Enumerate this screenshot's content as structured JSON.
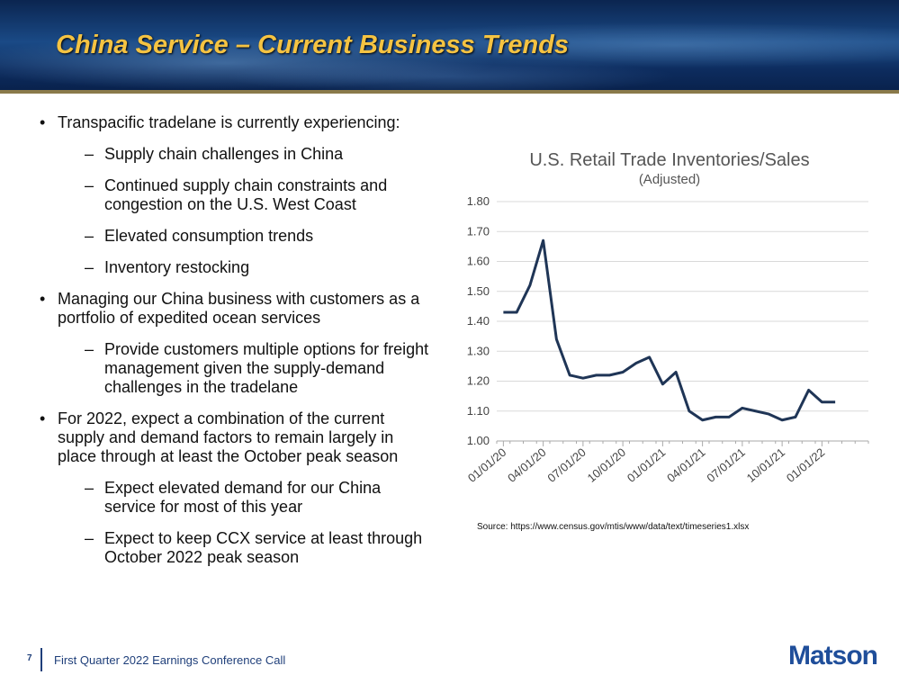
{
  "header": {
    "title": "China Service – Current Business Trends"
  },
  "bullets": [
    {
      "level": 1,
      "text": "Transpacific tradelane is currently experiencing:"
    },
    {
      "level": 2,
      "text": "Supply chain challenges in China"
    },
    {
      "level": 2,
      "text": "Continued supply chain constraints and congestion on the U.S. West Coast"
    },
    {
      "level": 2,
      "text": "Elevated consumption trends"
    },
    {
      "level": 2,
      "text": "Inventory restocking"
    },
    {
      "level": 1,
      "text": "Managing our China business with customers as a portfolio of expedited ocean services"
    },
    {
      "level": 2,
      "text": "Provide customers multiple options for freight management given the supply-demand challenges in the tradelane"
    },
    {
      "level": 1,
      "text": "For 2022, expect a combination of the current supply and demand factors to remain largely in place through at least the October peak season"
    },
    {
      "level": 2,
      "text": "Expect elevated demand for our China service for most of this year"
    },
    {
      "level": 2,
      "text": "Expect to keep CCX service at least through October 2022 peak season"
    }
  ],
  "chart_data": {
    "type": "line",
    "title": "U.S. Retail Trade Inventories/Sales",
    "subtitle": "(Adjusted)",
    "source": "Source: https://www.census.gov/mtis/www/data/text/timeseries1.xlsx",
    "categories": [
      "01/01/20",
      null,
      null,
      "04/01/20",
      null,
      null,
      "07/01/20",
      null,
      null,
      "10/01/20",
      null,
      null,
      "01/01/21",
      null,
      null,
      "04/01/21",
      null,
      null,
      "07/01/21",
      null,
      null,
      "10/01/21",
      null,
      null,
      "01/01/22",
      null,
      null,
      null
    ],
    "series": [
      {
        "name": "Inventories/Sales",
        "color": "#1f3556",
        "values": [
          1.43,
          1.43,
          1.52,
          1.67,
          1.34,
          1.22,
          1.21,
          1.22,
          1.22,
          1.23,
          1.26,
          1.28,
          1.19,
          1.23,
          1.1,
          1.07,
          1.08,
          1.08,
          1.11,
          1.1,
          1.09,
          1.07,
          1.08,
          1.17,
          1.13,
          1.13,
          null,
          null
        ]
      }
    ],
    "ylim": [
      1.0,
      1.8
    ],
    "yticks": [
      {
        "value": 1.0,
        "label": "1.00"
      },
      {
        "value": 1.1,
        "label": "1.10"
      },
      {
        "value": 1.2,
        "label": "1.20"
      },
      {
        "value": 1.3,
        "label": "1.30"
      },
      {
        "value": 1.4,
        "label": "1.40"
      },
      {
        "value": 1.5,
        "label": "1.50"
      },
      {
        "value": 1.6,
        "label": "1.60"
      },
      {
        "value": 1.7,
        "label": "1.70"
      },
      {
        "value": 1.8,
        "label": "1.80"
      }
    ],
    "grid": true
  },
  "footer": {
    "page": "7",
    "text": "First Quarter 2022 Earnings Conference Call",
    "logo": "Matson"
  }
}
